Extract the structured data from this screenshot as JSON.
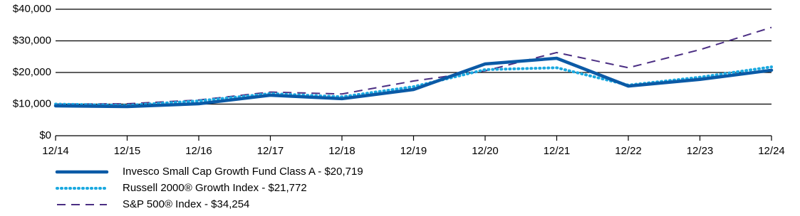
{
  "chart_data": {
    "type": "line",
    "categories": [
      "12/14",
      "12/15",
      "12/16",
      "12/17",
      "12/18",
      "12/19",
      "12/20",
      "12/21",
      "12/22",
      "12/23",
      "12/24"
    ],
    "series": [
      {
        "name": "Invesco Small Cap Growth Fund Class A - $20,719",
        "color": "#0b5aa6",
        "style": "solid",
        "values": [
          9450,
          9200,
          10100,
          12800,
          11700,
          14600,
          22700,
          24500,
          15700,
          17800,
          20719
        ]
      },
      {
        "name": "Russell 2000® Growth Index - $21,772",
        "color": "#1ba9e0",
        "style": "dotted",
        "values": [
          10000,
          9600,
          11000,
          13300,
          12300,
          15500,
          20900,
          21500,
          16000,
          18500,
          21772
        ]
      },
      {
        "name": "S&P 500® Index - $34,254",
        "color": "#4b2e83",
        "style": "dashed",
        "values": [
          10000,
          10100,
          11300,
          13800,
          13200,
          17300,
          20500,
          26300,
          21500,
          27200,
          34254
        ]
      }
    ],
    "ylim": [
      0,
      40000
    ],
    "yticks": [
      {
        "value": 0,
        "label": "$0"
      },
      {
        "value": 10000,
        "label": "$10,000"
      },
      {
        "value": 20000,
        "label": "$20,000"
      },
      {
        "value": 30000,
        "label": "$30,000"
      },
      {
        "value": 40000,
        "label": "$40,000"
      }
    ],
    "grid": true
  }
}
